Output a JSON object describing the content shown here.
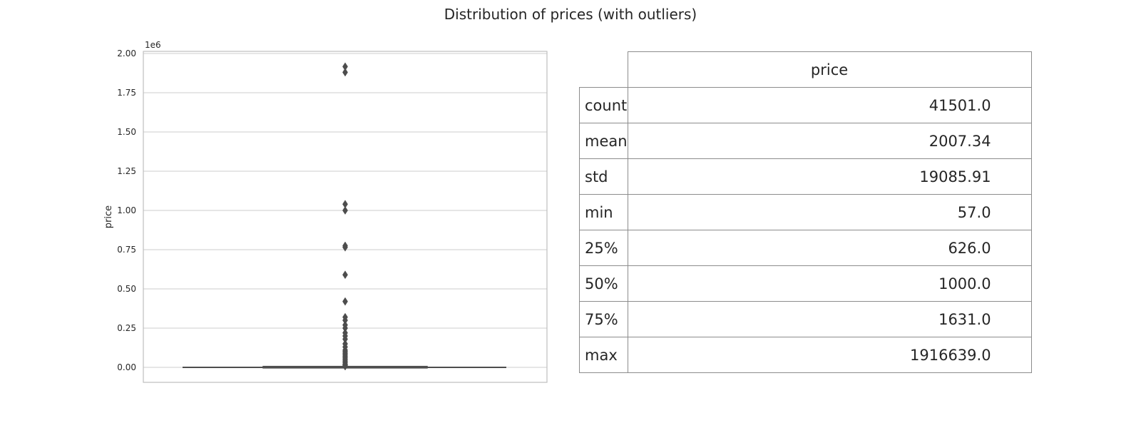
{
  "title": "Distribution of prices (with outliers)",
  "colors": {
    "box": "#4d4d4d",
    "grid": "#cccccc",
    "frame": "#bfbfbf",
    "text": "#262626"
  },
  "chart_data": {
    "type": "box",
    "ylabel": "price",
    "offset_label": "1e6",
    "ylim": [
      -0.09,
      2.01
    ],
    "yticks": [
      0.0,
      0.25,
      0.5,
      0.75,
      1.0,
      1.25,
      1.5,
      1.75,
      2.0
    ],
    "ytick_labels": [
      "0.00",
      "0.25",
      "0.50",
      "0.75",
      "1.00",
      "1.25",
      "1.50",
      "1.75",
      "2.00"
    ],
    "grid": true,
    "box": {
      "q1": 626.0,
      "median": 1000.0,
      "q3": 1631.0,
      "whisker_low": 57.0,
      "whisker_high": 3138.5
    },
    "outliers_scaled_1e6": [
      1.916639,
      1.88,
      1.04,
      1.0,
      0.775,
      0.765,
      0.59,
      0.42,
      0.32,
      0.3,
      0.27,
      0.25,
      0.22,
      0.2,
      0.18,
      0.15,
      0.13,
      0.11,
      0.1,
      0.09,
      0.08,
      0.07,
      0.06,
      0.05,
      0.04,
      0.03,
      0.02,
      0.015,
      0.01,
      0.007
    ]
  },
  "table": {
    "column_header": "price",
    "rows": [
      {
        "label": "count",
        "value": "41501.0"
      },
      {
        "label": "mean",
        "value": "2007.34"
      },
      {
        "label": "std",
        "value": "19085.91"
      },
      {
        "label": "min",
        "value": "57.0"
      },
      {
        "label": "25%",
        "value": "626.0"
      },
      {
        "label": "50%",
        "value": "1000.0"
      },
      {
        "label": "75%",
        "value": "1631.0"
      },
      {
        "label": "max",
        "value": "1916639.0"
      }
    ]
  }
}
